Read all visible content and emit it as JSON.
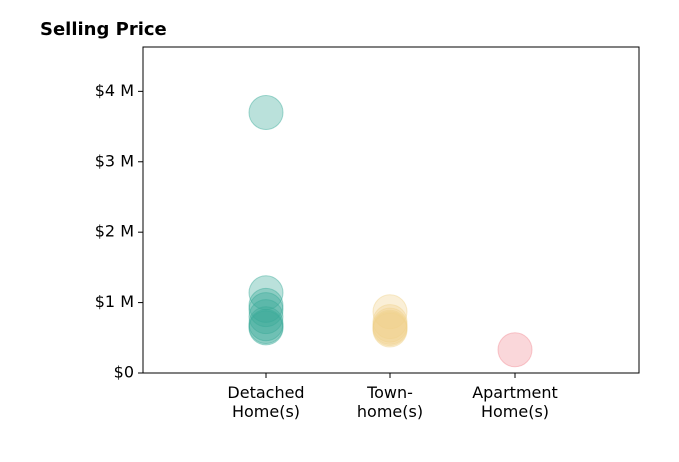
{
  "chart_data": {
    "type": "scatter",
    "title": "Selling Price",
    "xlabel": "",
    "ylabel": "",
    "categories": [
      [
        "Detached",
        "Home(s)"
      ],
      [
        "Town-",
        "home(s)"
      ],
      [
        "Apartment",
        "Home(s)"
      ]
    ],
    "ylim": [
      0,
      4630000
    ],
    "yticks": [
      {
        "value": 0,
        "label": "$0"
      },
      {
        "value": 1000000,
        "label": "$1 M"
      },
      {
        "value": 2000000,
        "label": "$2 M"
      },
      {
        "value": 3000000,
        "label": "$3 M"
      },
      {
        "value": 4000000,
        "label": "$4 M"
      }
    ],
    "grid": false,
    "legend": "none",
    "series": [
      {
        "category_index": 0,
        "color": "#3aaa99",
        "values": [
          3700000,
          1140000,
          960000,
          900000,
          800000,
          700000,
          660000,
          640000
        ]
      },
      {
        "category_index": 1,
        "color": "#f0d28c",
        "values": [
          870000,
          730000,
          680000,
          650000,
          630000,
          610000
        ]
      },
      {
        "category_index": 2,
        "color": "#f28b95",
        "values": [
          330000
        ]
      }
    ]
  }
}
